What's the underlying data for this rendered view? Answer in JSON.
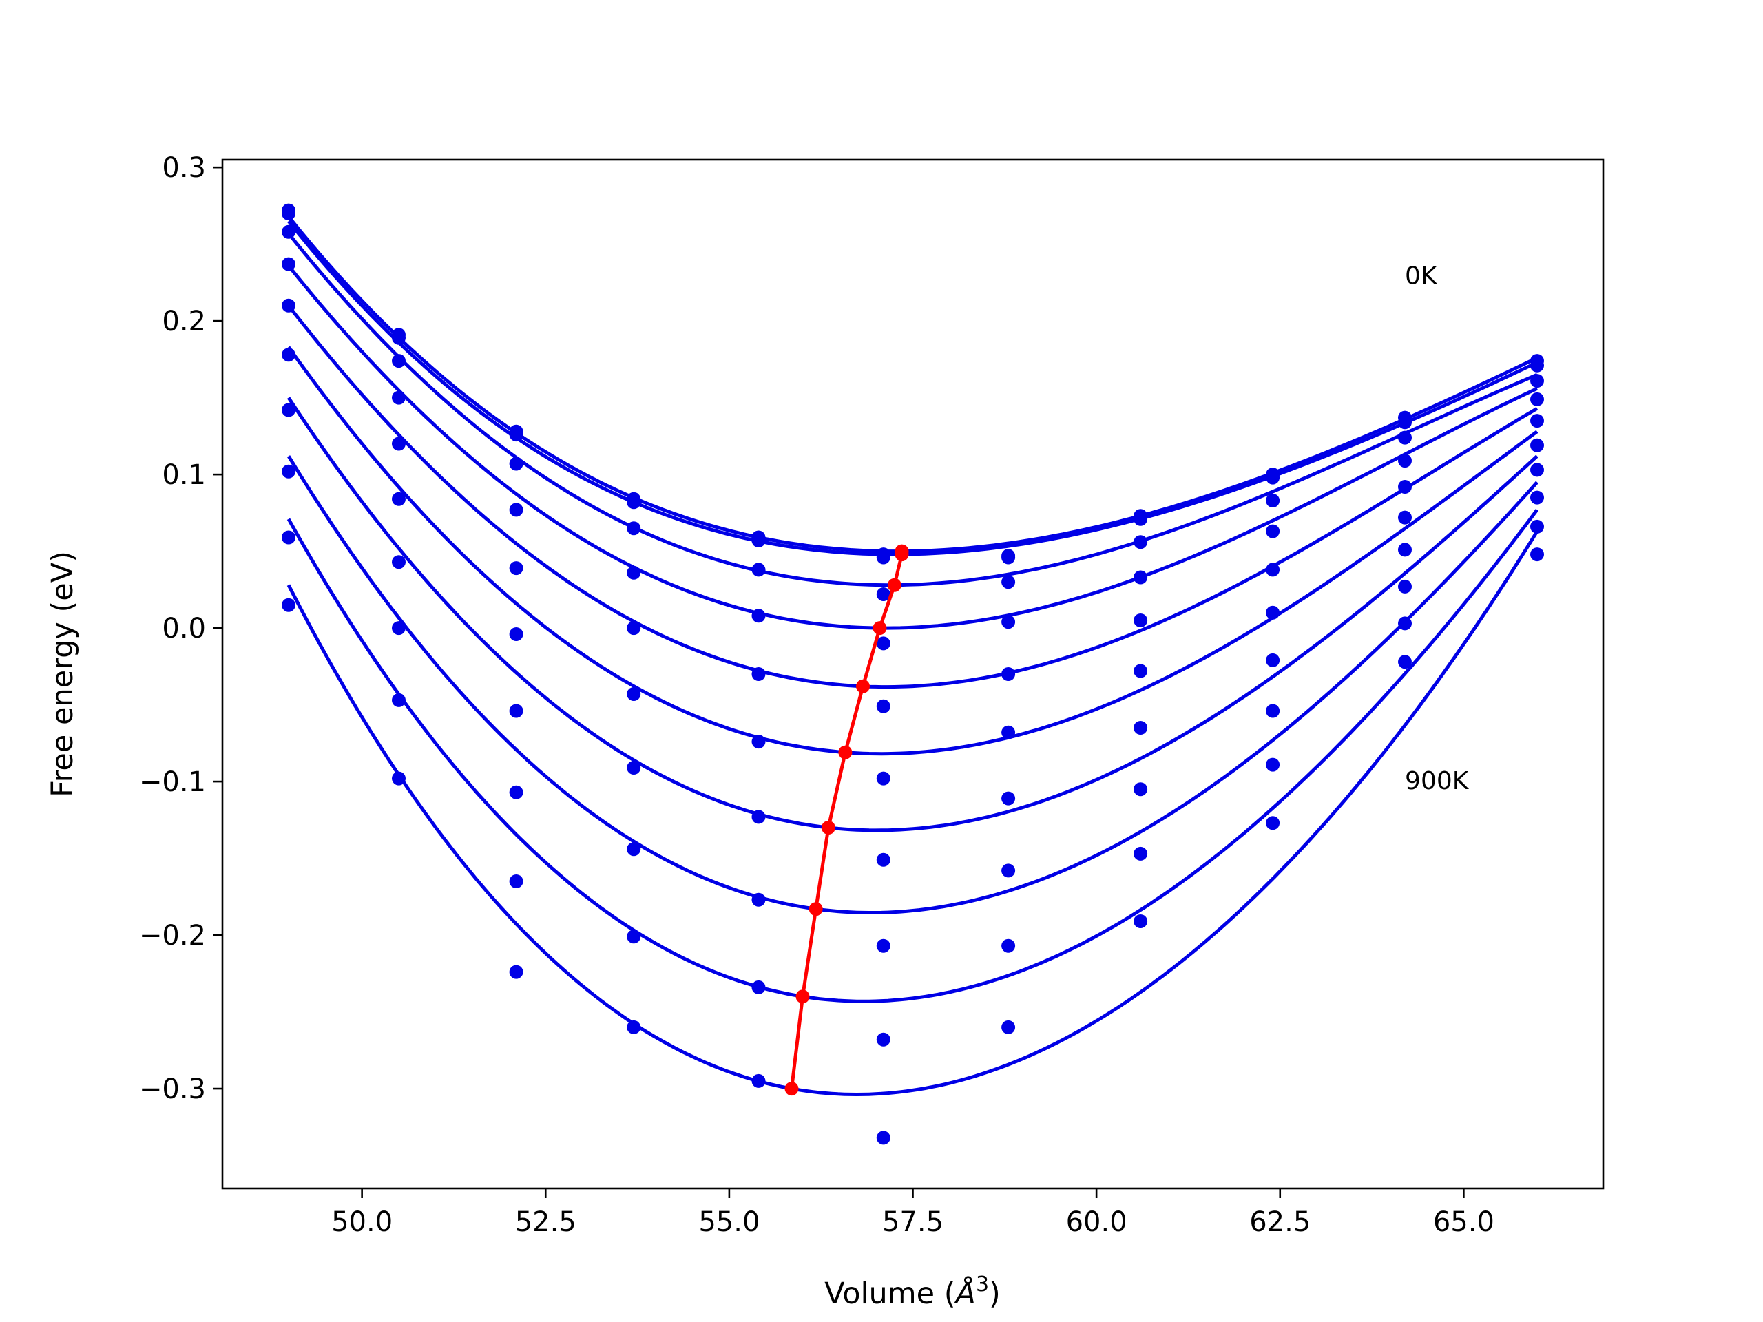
{
  "chart_data": {
    "type": "scatter",
    "title": "",
    "xlabel": "Volume (",
    "xlabel_symbol": "Å",
    "xlabel_exp": "3",
    "xlabel_close": ")",
    "ylabel": "Free energy (eV)",
    "xlim": [
      48.1,
      66.9
    ],
    "ylim": [
      -0.365,
      0.305
    ],
    "xticks": [
      50.0,
      52.5,
      55.0,
      57.5,
      60.0,
      62.5,
      65.0
    ],
    "xtick_labels": [
      "50.0",
      "52.5",
      "55.0",
      "57.5",
      "60.0",
      "62.5",
      "65.0"
    ],
    "yticks": [
      0.3,
      0.2,
      0.1,
      0.0,
      -0.1,
      -0.2,
      -0.3
    ],
    "ytick_labels": [
      "0.3",
      "0.2",
      "0.1",
      "0.0",
      "−0.1",
      "−0.2",
      "−0.3"
    ],
    "grid": false,
    "annotations": [
      {
        "text": "0K",
        "x": 64.2,
        "y": 0.224
      },
      {
        "text": "900K",
        "x": 64.2,
        "y": -0.105
      }
    ],
    "colors": {
      "curves": "#0000e6",
      "points": "#0000e6",
      "minima": "#ff0000"
    },
    "volumes": [
      49.0,
      50.5,
      52.1,
      53.7,
      55.4,
      57.1,
      58.8,
      60.6,
      62.4,
      64.2,
      66.0
    ],
    "series": [
      {
        "points": [
          0.272,
          0.191,
          0.128,
          0.084,
          0.059,
          0.048,
          0.047,
          0.073,
          0.1,
          0.137,
          0.174
        ],
        "min": [
          57.35,
          0.05
        ]
      },
      {
        "points": [
          0.27,
          0.189,
          0.126,
          0.082,
          0.057,
          0.046,
          0.046,
          0.071,
          0.098,
          0.134,
          0.171
        ],
        "min": [
          57.35,
          0.048
        ]
      },
      {
        "points": [
          0.258,
          0.174,
          0.107,
          0.065,
          0.038,
          0.022,
          0.03,
          0.056,
          0.083,
          0.124,
          0.161
        ],
        "min": [
          57.25,
          0.028
        ]
      },
      {
        "points": [
          0.237,
          0.15,
          0.077,
          0.036,
          0.008,
          -0.01,
          0.004,
          0.033,
          0.063,
          0.109,
          0.149
        ],
        "min": [
          57.05,
          0.0
        ]
      },
      {
        "points": [
          0.21,
          0.12,
          0.039,
          0.0,
          -0.03,
          -0.051,
          -0.03,
          0.005,
          0.038,
          0.092,
          0.135
        ],
        "min": [
          56.82,
          -0.038
        ]
      },
      {
        "points": [
          0.178,
          0.084,
          -0.004,
          -0.043,
          -0.074,
          -0.098,
          -0.068,
          -0.028,
          0.01,
          0.072,
          0.119
        ],
        "min": [
          56.58,
          -0.081
        ]
      },
      {
        "points": [
          0.142,
          0.043,
          -0.054,
          -0.091,
          -0.123,
          -0.151,
          -0.111,
          -0.065,
          -0.021,
          0.051,
          0.103
        ],
        "min": [
          56.35,
          -0.13
        ]
      },
      {
        "points": [
          0.102,
          0.0,
          -0.107,
          -0.144,
          -0.177,
          -0.207,
          -0.158,
          -0.105,
          -0.054,
          0.027,
          0.085
        ],
        "min": [
          56.18,
          -0.183
        ]
      },
      {
        "points": [
          0.059,
          -0.047,
          -0.165,
          -0.201,
          -0.234,
          -0.268,
          -0.207,
          -0.147,
          -0.089,
          0.003,
          0.066
        ],
        "min": [
          56.0,
          -0.24
        ]
      },
      {
        "points": [
          0.015,
          -0.098,
          -0.224,
          -0.26,
          -0.295,
          -0.332,
          -0.26,
          -0.191,
          -0.127,
          -0.022,
          0.048
        ],
        "min": [
          55.85,
          -0.3
        ]
      }
    ],
    "curves": [
      {
        "x": [
          49.0,
          53.0,
          57.35,
          62.0,
          66.0
        ],
        "y": [
          0.268,
          0.101,
          0.05,
          0.094,
          0.176
        ]
      },
      {
        "x": [
          49.0,
          53.0,
          57.35,
          62.0,
          66.0
        ],
        "y": [
          0.265,
          0.098,
          0.048,
          0.092,
          0.173
        ]
      },
      {
        "x": [
          49.0,
          53.0,
          57.25,
          62.0,
          66.0
        ],
        "y": [
          0.257,
          0.083,
          0.028,
          0.081,
          0.165
        ]
      },
      {
        "x": [
          49.0,
          53.0,
          57.05,
          62.0,
          66.0
        ],
        "y": [
          0.236,
          0.058,
          0.0,
          0.061,
          0.156
        ]
      },
      {
        "x": [
          49.0,
          53.0,
          56.82,
          62.0,
          66.0
        ],
        "y": [
          0.21,
          0.024,
          -0.038,
          0.03,
          0.143
        ]
      },
      {
        "x": [
          49.0,
          53.0,
          56.58,
          62.0,
          66.0
        ],
        "y": [
          0.183,
          -0.017,
          -0.081,
          -0.005,
          0.128
        ]
      },
      {
        "x": [
          49.0,
          53.0,
          56.35,
          62.0,
          66.0
        ],
        "y": [
          0.15,
          -0.064,
          -0.13,
          -0.045,
          0.112
        ]
      },
      {
        "x": [
          49.0,
          53.0,
          56.18,
          62.0,
          66.0
        ],
        "y": [
          0.112,
          -0.116,
          -0.183,
          -0.088,
          0.095
        ]
      },
      {
        "x": [
          49.0,
          53.0,
          56.0,
          62.0,
          66.0
        ],
        "y": [
          0.071,
          -0.173,
          -0.24,
          -0.134,
          0.077
        ]
      },
      {
        "x": [
          49.0,
          53.0,
          55.85,
          62.0,
          66.0
        ],
        "y": [
          0.028,
          -0.233,
          -0.3,
          -0.182,
          0.063
        ]
      }
    ]
  }
}
